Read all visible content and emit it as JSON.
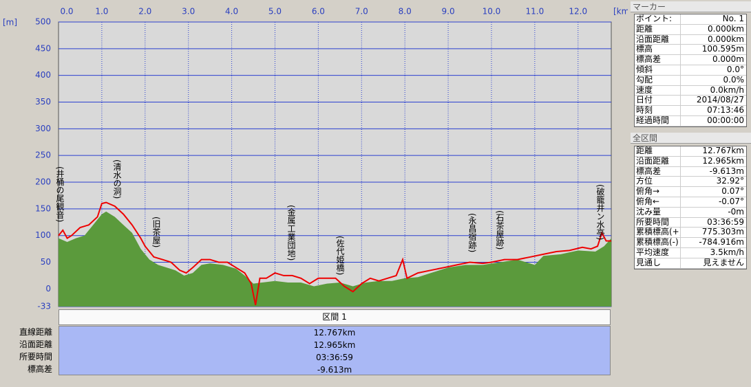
{
  "chart_data": {
    "type": "line",
    "y_unit": "[m]",
    "x_unit": "[km]",
    "xlim": [
      0,
      12.767
    ],
    "xticks": [
      {
        "value": 0,
        "label": "0.0"
      },
      {
        "value": 1,
        "label": "1.0"
      },
      {
        "value": 2,
        "label": "2.0"
      },
      {
        "value": 3,
        "label": "3.0"
      },
      {
        "value": 4,
        "label": "4.0"
      },
      {
        "value": 5,
        "label": "5.0"
      },
      {
        "value": 6,
        "label": "6.0"
      },
      {
        "value": 7,
        "label": "7.0"
      },
      {
        "value": 8,
        "label": "8.0"
      },
      {
        "value": 9,
        "label": "9.0"
      },
      {
        "value": 10,
        "label": "10.0"
      },
      {
        "value": 11,
        "label": "11.0"
      },
      {
        "value": 12,
        "label": "12.0"
      }
    ],
    "ylim": [
      -33,
      500
    ],
    "yticks": [
      -33,
      0,
      50,
      100,
      150,
      200,
      250,
      300,
      350,
      400,
      450,
      500
    ],
    "grid": true,
    "series": [
      {
        "color": "#5b9a3c",
        "fill": true,
        "x": [
          0,
          0.2,
          0.4,
          0.6,
          0.8,
          1.0,
          1.1,
          1.3,
          1.5,
          1.7,
          1.9,
          2.1,
          2.3,
          2.5,
          2.7,
          2.9,
          3.1,
          3.3,
          3.5,
          3.8,
          4.1,
          4.3,
          4.5,
          4.7,
          5.0,
          5.3,
          5.6,
          5.9,
          6.2,
          6.5,
          6.8,
          7.1,
          7.4,
          7.7,
          8.0,
          8.3,
          8.6,
          9.0,
          9.4,
          9.8,
          10.2,
          10.6,
          11.0,
          11.2,
          11.6,
          12.0,
          12.4,
          12.6,
          12.767
        ],
        "values": [
          95,
          88,
          95,
          100,
          120,
          140,
          145,
          135,
          120,
          105,
          75,
          55,
          45,
          40,
          35,
          25,
          30,
          45,
          48,
          45,
          38,
          25,
          10,
          12,
          15,
          12,
          12,
          5,
          10,
          12,
          5,
          12,
          15,
          15,
          20,
          22,
          30,
          40,
          45,
          45,
          50,
          55,
          45,
          62,
          65,
          72,
          70,
          80,
          95
        ]
      },
      {
        "color": "#ee0000",
        "fill": false,
        "x": [
          0,
          0.1,
          0.2,
          0.3,
          0.5,
          0.7,
          0.9,
          1.0,
          1.1,
          1.3,
          1.5,
          1.7,
          1.9,
          2.0,
          2.2,
          2.4,
          2.6,
          2.8,
          2.95,
          3.1,
          3.3,
          3.5,
          3.7,
          3.9,
          4.1,
          4.3,
          4.45,
          4.55,
          4.65,
          4.8,
          5.0,
          5.2,
          5.4,
          5.6,
          5.8,
          6.0,
          6.2,
          6.4,
          6.6,
          6.8,
          7.0,
          7.2,
          7.4,
          7.6,
          7.8,
          7.95,
          8.05,
          8.3,
          8.6,
          8.9,
          9.2,
          9.5,
          9.8,
          10.0,
          10.3,
          10.6,
          10.9,
          11.2,
          11.5,
          11.8,
          12.1,
          12.3,
          12.45,
          12.55,
          12.65,
          12.767
        ],
        "values": [
          100,
          110,
          95,
          100,
          115,
          120,
          135,
          160,
          162,
          155,
          140,
          120,
          95,
          80,
          60,
          55,
          50,
          35,
          30,
          40,
          55,
          55,
          50,
          50,
          40,
          30,
          10,
          -30,
          20,
          20,
          30,
          25,
          25,
          20,
          10,
          20,
          20,
          20,
          5,
          -5,
          10,
          20,
          15,
          20,
          25,
          55,
          20,
          30,
          35,
          40,
          45,
          50,
          48,
          50,
          55,
          55,
          60,
          65,
          70,
          72,
          78,
          75,
          80,
          105,
          90,
          90
        ]
      }
    ],
    "annotations": [
      "(井桶の尾観音)",
      "(清水の洞)",
      "(旧茶屋)",
      "(金属工業団地)",
      "(佐代姫橋)",
      "(永昌宿跡)",
      "(石茶屋跡)",
      "(破籠井ン水亭)"
    ]
  },
  "section": {
    "title": "区間 1",
    "rows": [
      [
        "直線距離",
        "12.767km"
      ],
      [
        "沿面距離",
        "12.965km"
      ],
      [
        "所要時間",
        "03:36:59"
      ],
      [
        "標高差",
        "-9.613m"
      ]
    ]
  },
  "marker": {
    "title": "マーカー",
    "rows": [
      [
        "ポイント:",
        "No. 1"
      ],
      [
        "距離",
        "0.000km"
      ],
      [
        "沿面距離",
        "0.000km"
      ],
      [
        "標高",
        "100.595m"
      ],
      [
        "標高差",
        "0.000m"
      ],
      [
        "傾斜",
        "0.0°"
      ],
      [
        "勾配",
        "0.0%"
      ],
      [
        "速度",
        "0.0km/h"
      ],
      [
        "日付",
        "2014/08/27"
      ],
      [
        "時刻",
        "07:13:46"
      ],
      [
        "経過時間",
        "00:00:00"
      ]
    ]
  },
  "total": {
    "title": "全区間",
    "rows": [
      [
        "距離",
        "12.767km"
      ],
      [
        "沿面距離",
        "12.965km"
      ],
      [
        "標高差",
        "-9.613m"
      ],
      [
        "方位",
        "32.92°"
      ],
      [
        "俯角→",
        "0.07°"
      ],
      [
        "俯角←",
        "-0.07°"
      ],
      [
        "沈み量",
        "-0m"
      ],
      [
        "所要時間",
        "03:36:59"
      ],
      [
        "累積標高(+)",
        "775.303m"
      ],
      [
        "累積標高(-)",
        "-784.916m"
      ],
      [
        "平均速度",
        "3.5km/h"
      ],
      [
        "見通し",
        "見えません"
      ]
    ]
  }
}
